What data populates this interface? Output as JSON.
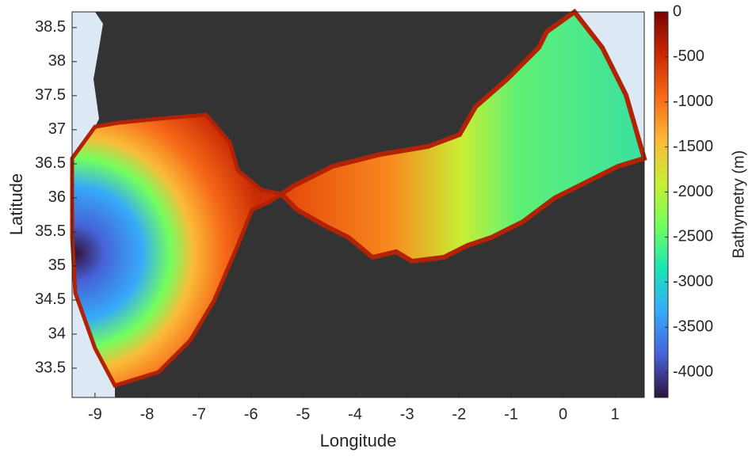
{
  "chart_data": {
    "type": "map",
    "xlabel": "Longitude",
    "ylabel": "Latitude",
    "colorbar_label": "Bathymetry (m)",
    "xlim": [
      -9.44,
      1.56
    ],
    "ylim": [
      33.07,
      38.73
    ],
    "xticks": [
      -9,
      -8,
      -7,
      -6,
      -5,
      -4,
      -3,
      -2,
      -1,
      0,
      1
    ],
    "yticks": [
      33.5,
      34,
      34.5,
      35,
      35.5,
      36,
      36.5,
      37,
      37.5,
      38,
      38.5
    ],
    "clim": [
      -4280,
      0
    ],
    "cticks": [
      0,
      -500,
      -1000,
      -1500,
      -2000,
      -2500,
      -3000,
      -3500,
      -4000
    ],
    "colormap": [
      "#30123b",
      "#4662d7",
      "#36aaf9",
      "#1ae4b6",
      "#72fe5e",
      "#c7ef34",
      "#fabb39",
      "#f66b19",
      "#ca2a04",
      "#7a0403"
    ]
  }
}
